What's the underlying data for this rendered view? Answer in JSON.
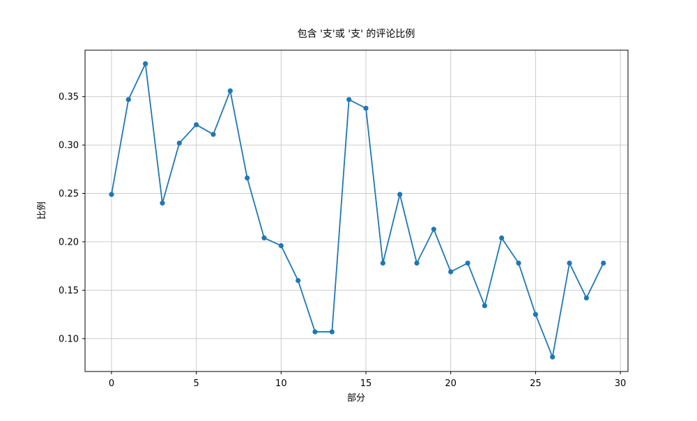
{
  "figure": {
    "background": "#ffffff"
  },
  "chart_data": {
    "type": "line",
    "title": "包含 '支'或 '支' 的评论比例",
    "xlabel": "部分",
    "ylabel": "比例",
    "x": [
      0,
      1,
      2,
      3,
      4,
      5,
      6,
      7,
      8,
      9,
      10,
      11,
      12,
      13,
      14,
      15,
      16,
      17,
      18,
      19,
      20,
      21,
      22,
      23,
      24,
      25,
      26,
      27,
      28,
      29
    ],
    "y": [
      0.249,
      0.347,
      0.384,
      0.24,
      0.302,
      0.321,
      0.311,
      0.356,
      0.266,
      0.204,
      0.196,
      0.16,
      0.107,
      0.107,
      0.347,
      0.338,
      0.178,
      0.249,
      0.178,
      0.213,
      0.169,
      0.178,
      0.134,
      0.204,
      0.178,
      0.125,
      0.081,
      0.178,
      0.142,
      0.178
    ],
    "xticks": {
      "values": [
        0,
        5,
        10,
        15,
        20,
        25,
        30
      ],
      "labels": [
        "0",
        "5",
        "10",
        "15",
        "20",
        "25",
        "30"
      ]
    },
    "yticks": {
      "values": [
        0.1,
        0.15,
        0.2,
        0.25,
        0.3,
        0.35
      ],
      "labels": [
        "0.10",
        "0.15",
        "0.20",
        "0.25",
        "0.30",
        "0.35"
      ]
    },
    "xlim": [
      -1.56,
      30.45
    ],
    "ylim": [
      0.066,
      0.398
    ],
    "grid": true,
    "legend": "none",
    "line_color": "#1f77b4",
    "marker_color": "#1f77b4",
    "grid_color": "#cccccc",
    "axis_color": "#000000",
    "text_color": "#000000"
  }
}
